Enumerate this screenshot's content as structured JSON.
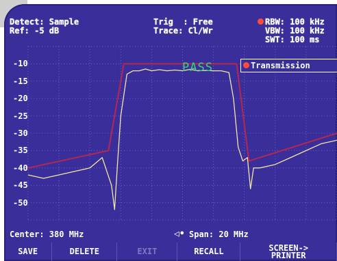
{
  "header": {
    "detect": "Detect: Sample",
    "ref": "Ref: -5 dB",
    "trig": "Trig  : Free",
    "trace": "Trace: Cl/Wr",
    "rbw": "RBW: 100 kHz",
    "vbw": "VBW: 100 kHz",
    "swt": "SWT: 100 ms"
  },
  "legend": {
    "label": "Transmission"
  },
  "pass_label": "PASS",
  "footer": {
    "center": "Center: 380 MHz",
    "span": "Span: 20 MHz",
    "span_icon": "arrow-left-right-icon"
  },
  "softkeys": [
    {
      "label": "SAVE",
      "enabled": true
    },
    {
      "label": "DELETE",
      "enabled": true
    },
    {
      "label": "EXIT",
      "enabled": false
    },
    {
      "label": "RECALL",
      "enabled": true
    },
    {
      "label": "SCREEN->\nPRINTER",
      "enabled": true
    }
  ],
  "colors": {
    "background": "#3a2f9a",
    "grid": "#6d63c8",
    "trace": "#f3e7a6",
    "limit_line": "#b6274f",
    "pass": "#3bd37a",
    "marker_dot": "#ff4b3a"
  },
  "chart_data": {
    "type": "line",
    "y_tick_labels": [
      "-10",
      "-15",
      "-20",
      "-25",
      "-30",
      "-35",
      "-40",
      "-45",
      "-50"
    ],
    "ylim": [
      -55,
      -5
    ],
    "x_unit": "MHz",
    "xlim": [
      370,
      390
    ],
    "grid": true,
    "series": [
      {
        "name": "Transmission",
        "x": [
          370,
          371,
          372,
          373,
          374,
          374.8,
          375.4,
          375.6,
          375.8,
          376.0,
          376.4,
          376.8,
          377.2,
          377.6,
          378,
          378.5,
          379,
          379.5,
          380,
          380.5,
          381,
          381.5,
          382,
          382.5,
          383.0,
          383.3,
          383.6,
          383.9,
          384.2,
          384.4,
          384.6,
          385,
          386,
          387,
          388,
          389,
          390
        ],
        "values": [
          -42,
          -43,
          -42,
          -41,
          -40,
          -37,
          -45,
          -52,
          -38,
          -25,
          -13,
          -12,
          -12,
          -11.5,
          -12,
          -11.7,
          -12,
          -11.8,
          -12,
          -11.6,
          -12,
          -11.9,
          -12,
          -12,
          -12.5,
          -20,
          -34,
          -38,
          -37,
          -46,
          -40,
          -40,
          -39,
          -37,
          -35,
          -33,
          -32
        ]
      },
      {
        "name": "limit",
        "x": [
          370,
          375.2,
          376.2,
          383.5,
          384.3,
          390
        ],
        "values": [
          -40,
          -35,
          -10,
          -10,
          -38,
          -30
        ]
      }
    ]
  }
}
